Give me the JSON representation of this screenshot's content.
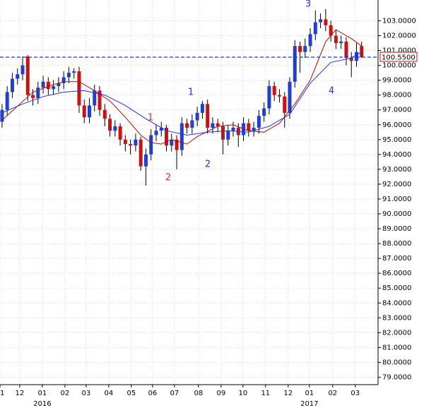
{
  "chart_data": {
    "type": "candlestick",
    "xlim": [
      -0.4,
      73.2
    ],
    "ylim": [
      78.5,
      104.4
    ],
    "grid": true,
    "up_color": "#1f3fd0",
    "down_color": "#cc1111",
    "xticks": [
      {
        "value": -0.4,
        "label": "11"
      },
      {
        "value": 3.44,
        "label": "12"
      },
      {
        "value": 7.84,
        "label": "01"
      },
      {
        "value": 12.24,
        "label": "02"
      },
      {
        "value": 16.37,
        "label": "03"
      },
      {
        "value": 20.77,
        "label": "04"
      },
      {
        "value": 25.17,
        "label": "05"
      },
      {
        "value": 29.3,
        "label": "06"
      },
      {
        "value": 33.56,
        "label": "07"
      },
      {
        "value": 38.24,
        "label": "08"
      },
      {
        "value": 42.64,
        "label": "09"
      },
      {
        "value": 46.9,
        "label": "10"
      },
      {
        "value": 51.3,
        "label": "11"
      },
      {
        "value": 55.7,
        "label": "12"
      },
      {
        "value": 59.83,
        "label": "01"
      },
      {
        "value": 64.37,
        "label": "02"
      },
      {
        "value": 68.77,
        "label": "03"
      }
    ],
    "years": [
      {
        "value": 7.84,
        "label": "2016"
      },
      {
        "value": 59.83,
        "label": "2017"
      }
    ],
    "yticks": [
      {
        "value": 79,
        "label": "79.0000"
      },
      {
        "value": 80,
        "label": "80.0000"
      },
      {
        "value": 81,
        "label": "81.0000"
      },
      {
        "value": 82,
        "label": "82.0000"
      },
      {
        "value": 83,
        "label": "83.0000"
      },
      {
        "value": 84,
        "label": "84.0000"
      },
      {
        "value": 85,
        "label": "85.0000"
      },
      {
        "value": 86,
        "label": "86.0000"
      },
      {
        "value": 87,
        "label": "87.0000"
      },
      {
        "value": 88,
        "label": "88.0000"
      },
      {
        "value": 89,
        "label": "89.0000"
      },
      {
        "value": 90,
        "label": "90.0000"
      },
      {
        "value": 91,
        "label": "91.0000"
      },
      {
        "value": 92,
        "label": "92.0000"
      },
      {
        "value": 93,
        "label": "93.0000"
      },
      {
        "value": 94,
        "label": "94.0000"
      },
      {
        "value": 95,
        "label": "95.0000"
      },
      {
        "value": 96,
        "label": "96.0000"
      },
      {
        "value": 97,
        "label": "97.0000"
      },
      {
        "value": 98,
        "label": "98.0000"
      },
      {
        "value": 99,
        "label": "99.0000"
      },
      {
        "value": 100,
        "label": "100.0000"
      },
      {
        "value": 101,
        "label": "101.0000"
      },
      {
        "value": 102,
        "label": "102.0000"
      },
      {
        "value": 103,
        "label": "103.0000"
      }
    ],
    "last_price": {
      "value": 100.55,
      "label": "100.5500",
      "color": "#2233cc"
    },
    "open": [
      96.2,
      97.0,
      98.2,
      99.1,
      99.4,
      100.6,
      98.0,
      97.8,
      98.5,
      98.9,
      98.4,
      98.6,
      98.8,
      99.2,
      99.5,
      99.6,
      97.3,
      96.5,
      97.3,
      98.3,
      97.0,
      96.4,
      95.6,
      95.9,
      95.0,
      94.7,
      94.6,
      95.0,
      93.2,
      94.0,
      95.3,
      95.6,
      95.8,
      94.6,
      95.0,
      94.3,
      96.1,
      95.8,
      96.3,
      96.8,
      97.4,
      95.8,
      96.1,
      95.9,
      95.0,
      95.6,
      95.8,
      95.3,
      96.1,
      95.6,
      95.8,
      96.6,
      97.1,
      98.6,
      98.0,
      97.9,
      96.8,
      98.9,
      101.3,
      100.9,
      101.3,
      102.1,
      102.9,
      103.1,
      102.7,
      102.0,
      101.5,
      101.6,
      100.5,
      100.3,
      101.3
    ],
    "high": [
      97.4,
      98.6,
      99.5,
      99.8,
      100.6,
      100.7,
      98.4,
      98.9,
      99.3,
      99.2,
      99.0,
      99.2,
      99.6,
      99.9,
      99.8,
      99.9,
      97.7,
      97.8,
      98.7,
      98.6,
      97.4,
      96.7,
      96.3,
      96.1,
      95.3,
      95.0,
      95.4,
      95.2,
      94.4,
      95.7,
      96.0,
      96.2,
      96.0,
      95.4,
      95.3,
      96.5,
      96.4,
      96.7,
      97.2,
      97.6,
      97.7,
      96.5,
      96.4,
      96.2,
      96.0,
      96.2,
      96.1,
      96.5,
      96.4,
      96.2,
      97.0,
      97.5,
      99.0,
      98.9,
      98.4,
      98.2,
      99.2,
      101.7,
      101.6,
      101.8,
      102.5,
      103.7,
      103.5,
      103.8,
      103.0,
      102.4,
      102.0,
      101.9,
      100.9,
      101.5,
      101.6
    ],
    "low": [
      95.8,
      96.6,
      97.8,
      98.7,
      99.0,
      97.6,
      97.3,
      97.4,
      98.1,
      98.0,
      98.0,
      98.2,
      98.4,
      98.8,
      99.1,
      96.8,
      96.1,
      96.1,
      96.9,
      96.6,
      95.9,
      95.2,
      95.2,
      94.6,
      94.2,
      94.0,
      94.2,
      92.9,
      91.9,
      93.6,
      94.9,
      95.2,
      94.2,
      94.2,
      93.0,
      93.9,
      95.4,
      95.4,
      95.9,
      96.4,
      95.4,
      95.4,
      95.5,
      94.0,
      94.6,
      95.2,
      94.5,
      94.9,
      95.2,
      95.2,
      95.4,
      96.2,
      96.7,
      97.6,
      97.5,
      95.8,
      96.4,
      98.5,
      99.5,
      100.5,
      100.9,
      101.7,
      102.5,
      102.3,
      101.6,
      101.1,
      101.1,
      100.0,
      99.2,
      99.9,
      100.5
    ],
    "close": [
      97.0,
      98.2,
      99.1,
      99.4,
      100.0,
      98.0,
      97.8,
      98.5,
      98.9,
      98.4,
      98.6,
      98.8,
      99.2,
      99.5,
      99.6,
      97.3,
      96.5,
      97.3,
      98.3,
      97.0,
      96.4,
      95.6,
      95.9,
      95.0,
      94.7,
      94.6,
      95.0,
      93.2,
      94.0,
      95.3,
      95.6,
      95.8,
      94.6,
      95.0,
      94.3,
      96.1,
      95.8,
      96.3,
      96.8,
      97.4,
      95.8,
      96.1,
      95.9,
      95.0,
      95.6,
      95.8,
      95.3,
      96.1,
      95.6,
      95.8,
      96.6,
      97.1,
      98.6,
      98.0,
      97.9,
      96.8,
      98.9,
      101.3,
      100.9,
      101.3,
      102.1,
      102.9,
      103.1,
      102.7,
      102.0,
      101.5,
      101.6,
      100.5,
      100.3,
      100.9,
      100.55
    ],
    "series": [
      {
        "color": "#aa1111",
        "x": [
          0,
          6,
          10,
          12,
          15,
          18,
          21,
          24,
          27,
          29,
          31,
          33,
          36,
          38,
          42,
          45,
          48,
          51,
          54,
          57,
          60,
          63,
          65,
          68,
          70
        ],
        "values": [
          96.3,
          98.2,
          98.7,
          98.9,
          98.9,
          98.3,
          97.6,
          96.5,
          95.3,
          94.8,
          94.7,
          95.0,
          94.7,
          95.2,
          95.9,
          96.0,
          95.6,
          95.5,
          96.1,
          97.4,
          99.0,
          101.6,
          102.4,
          101.8,
          101.3
        ]
      },
      {
        "color": "#2233dd",
        "x": [
          0,
          4,
          8,
          12,
          16,
          20,
          24,
          28,
          32,
          36,
          40,
          44,
          48,
          52,
          56,
          60,
          64,
          68,
          70
        ],
        "values": [
          96.8,
          97.4,
          97.9,
          98.2,
          98.3,
          98.0,
          97.3,
          96.4,
          95.6,
          95.3,
          95.5,
          95.6,
          95.5,
          95.9,
          96.7,
          98.8,
          100.2,
          100.5,
          100.9
        ]
      }
    ],
    "annotations": [
      {
        "text": "1",
        "color": "#dd2255"
      },
      {
        "text": "2",
        "color": "#dd2255"
      },
      {
        "text": "1",
        "color": "#4422cc"
      },
      {
        "text": "2",
        "color": "#4422cc"
      },
      {
        "text": "3",
        "color": "#4422cc"
      },
      {
        "text": "4",
        "color": "#4422cc"
      }
    ]
  }
}
